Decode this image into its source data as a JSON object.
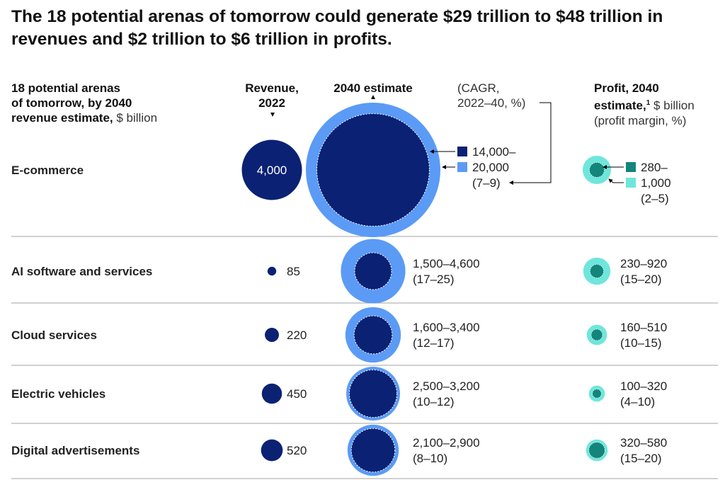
{
  "title": "The 18 potential arenas of tomorrow could generate $29 trillion to $48 trillion in revenues and $2 trillion to $6 trillion in profits.",
  "headers": {
    "arenas_bold_1": "18 potential arenas",
    "arenas_bold_2": "of tomorrow, by 2040",
    "arenas_bold_3": "revenue estimate,",
    "arenas_unit": "$ billion",
    "revenue_2022_1": "Revenue,",
    "revenue_2022_2": "2022",
    "estimate_2040": "2040 estimate",
    "cagr_1": "(CAGR,",
    "cagr_2": "2022–40, %)",
    "profit_1": "Profit, 2040",
    "profit_2": "estimate,",
    "profit_footnote": "1",
    "profit_unit": "$ billion",
    "profit_3": "(profit margin, %)"
  },
  "colors": {
    "revenue_2022": "#0b2173",
    "revenue_low": "#0b2173",
    "revenue_high": "#5b9bf5",
    "profit_low": "#13857a",
    "profit_high": "#6fe6dc",
    "divider": "#a0a0a0"
  },
  "chart_data": {
    "type": "bubble",
    "title": "18 potential arenas of tomorrow, by 2040 revenue estimate, $ billion",
    "rows": [
      {
        "arena": "E-commerce",
        "revenue_2022": 4000,
        "revenue_2022_label": "4,000",
        "revenue_2040_low": 14000,
        "revenue_2040_high": 20000,
        "revenue_2040_label_1": "14,000–",
        "revenue_2040_label_2": "20,000",
        "cagr_label": "(7–9)",
        "profit_low": 280,
        "profit_high": 1000,
        "profit_label_1": "280–",
        "profit_label_2": "1,000",
        "margin_label": "(2–5)"
      },
      {
        "arena": "AI software and services",
        "revenue_2022": 85,
        "revenue_2022_label": "85",
        "revenue_2040_low": 1500,
        "revenue_2040_high": 4600,
        "revenue_2040_label_1": "1,500–4,600",
        "cagr_label": "(17–25)",
        "profit_low": 230,
        "profit_high": 920,
        "profit_label_1": "230–920",
        "margin_label": "(15–20)"
      },
      {
        "arena": "Cloud services",
        "revenue_2022": 220,
        "revenue_2022_label": "220",
        "revenue_2040_low": 1600,
        "revenue_2040_high": 3400,
        "revenue_2040_label_1": "1,600–3,400",
        "cagr_label": "(12–17)",
        "profit_low": 160,
        "profit_high": 510,
        "profit_label_1": "160–510",
        "margin_label": "(10–15)"
      },
      {
        "arena": "Electric vehicles",
        "revenue_2022": 450,
        "revenue_2022_label": "450",
        "revenue_2040_low": 2500,
        "revenue_2040_high": 3200,
        "revenue_2040_label_1": "2,500–3,200",
        "cagr_label": "(10–12)",
        "profit_low": 100,
        "profit_high": 320,
        "profit_label_1": "100–320",
        "margin_label": "(4–10)"
      },
      {
        "arena": "Digital advertisements",
        "revenue_2022": 520,
        "revenue_2022_label": "520",
        "revenue_2040_low": 2100,
        "revenue_2040_high": 2900,
        "revenue_2040_label_1": "2,100–2,900",
        "cagr_label": "(8–10)",
        "profit_low": 320,
        "profit_high": 580,
        "profit_label_1": "320–580",
        "margin_label": "(15–20)"
      }
    ]
  }
}
